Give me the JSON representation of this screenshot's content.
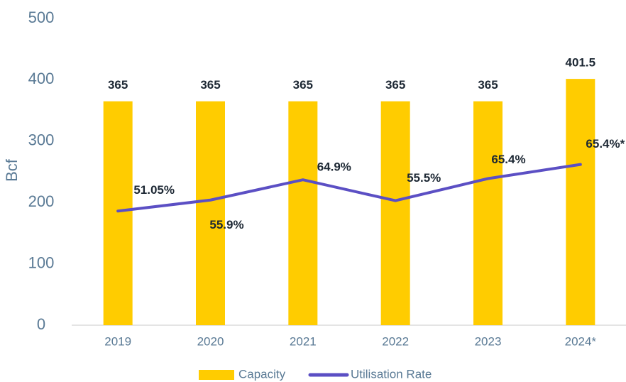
{
  "chart_data": {
    "type": "bar_line",
    "y_label": "Bcf",
    "categories": [
      "2019",
      "2020",
      "2021",
      "2022",
      "2023",
      "2024*"
    ],
    "series": [
      {
        "name": "Capacity",
        "type": "bar",
        "color": "#ffcc00",
        "values": [
          365,
          365,
          365,
          365,
          365,
          401.5
        ]
      },
      {
        "name": "Utilisation Rate",
        "type": "line",
        "color": "#5b4fc4",
        "values": [
          186,
          204,
          237,
          203,
          239,
          262
        ],
        "value_labels": [
          "51.05%",
          "55.9%",
          "64.9%",
          "55.5%",
          "65.4%",
          "65.4%*"
        ]
      }
    ],
    "ylim": [
      0,
      500
    ],
    "yticks": [
      0,
      100,
      200,
      300,
      400,
      500
    ],
    "grid": false,
    "legend": "bottom"
  }
}
